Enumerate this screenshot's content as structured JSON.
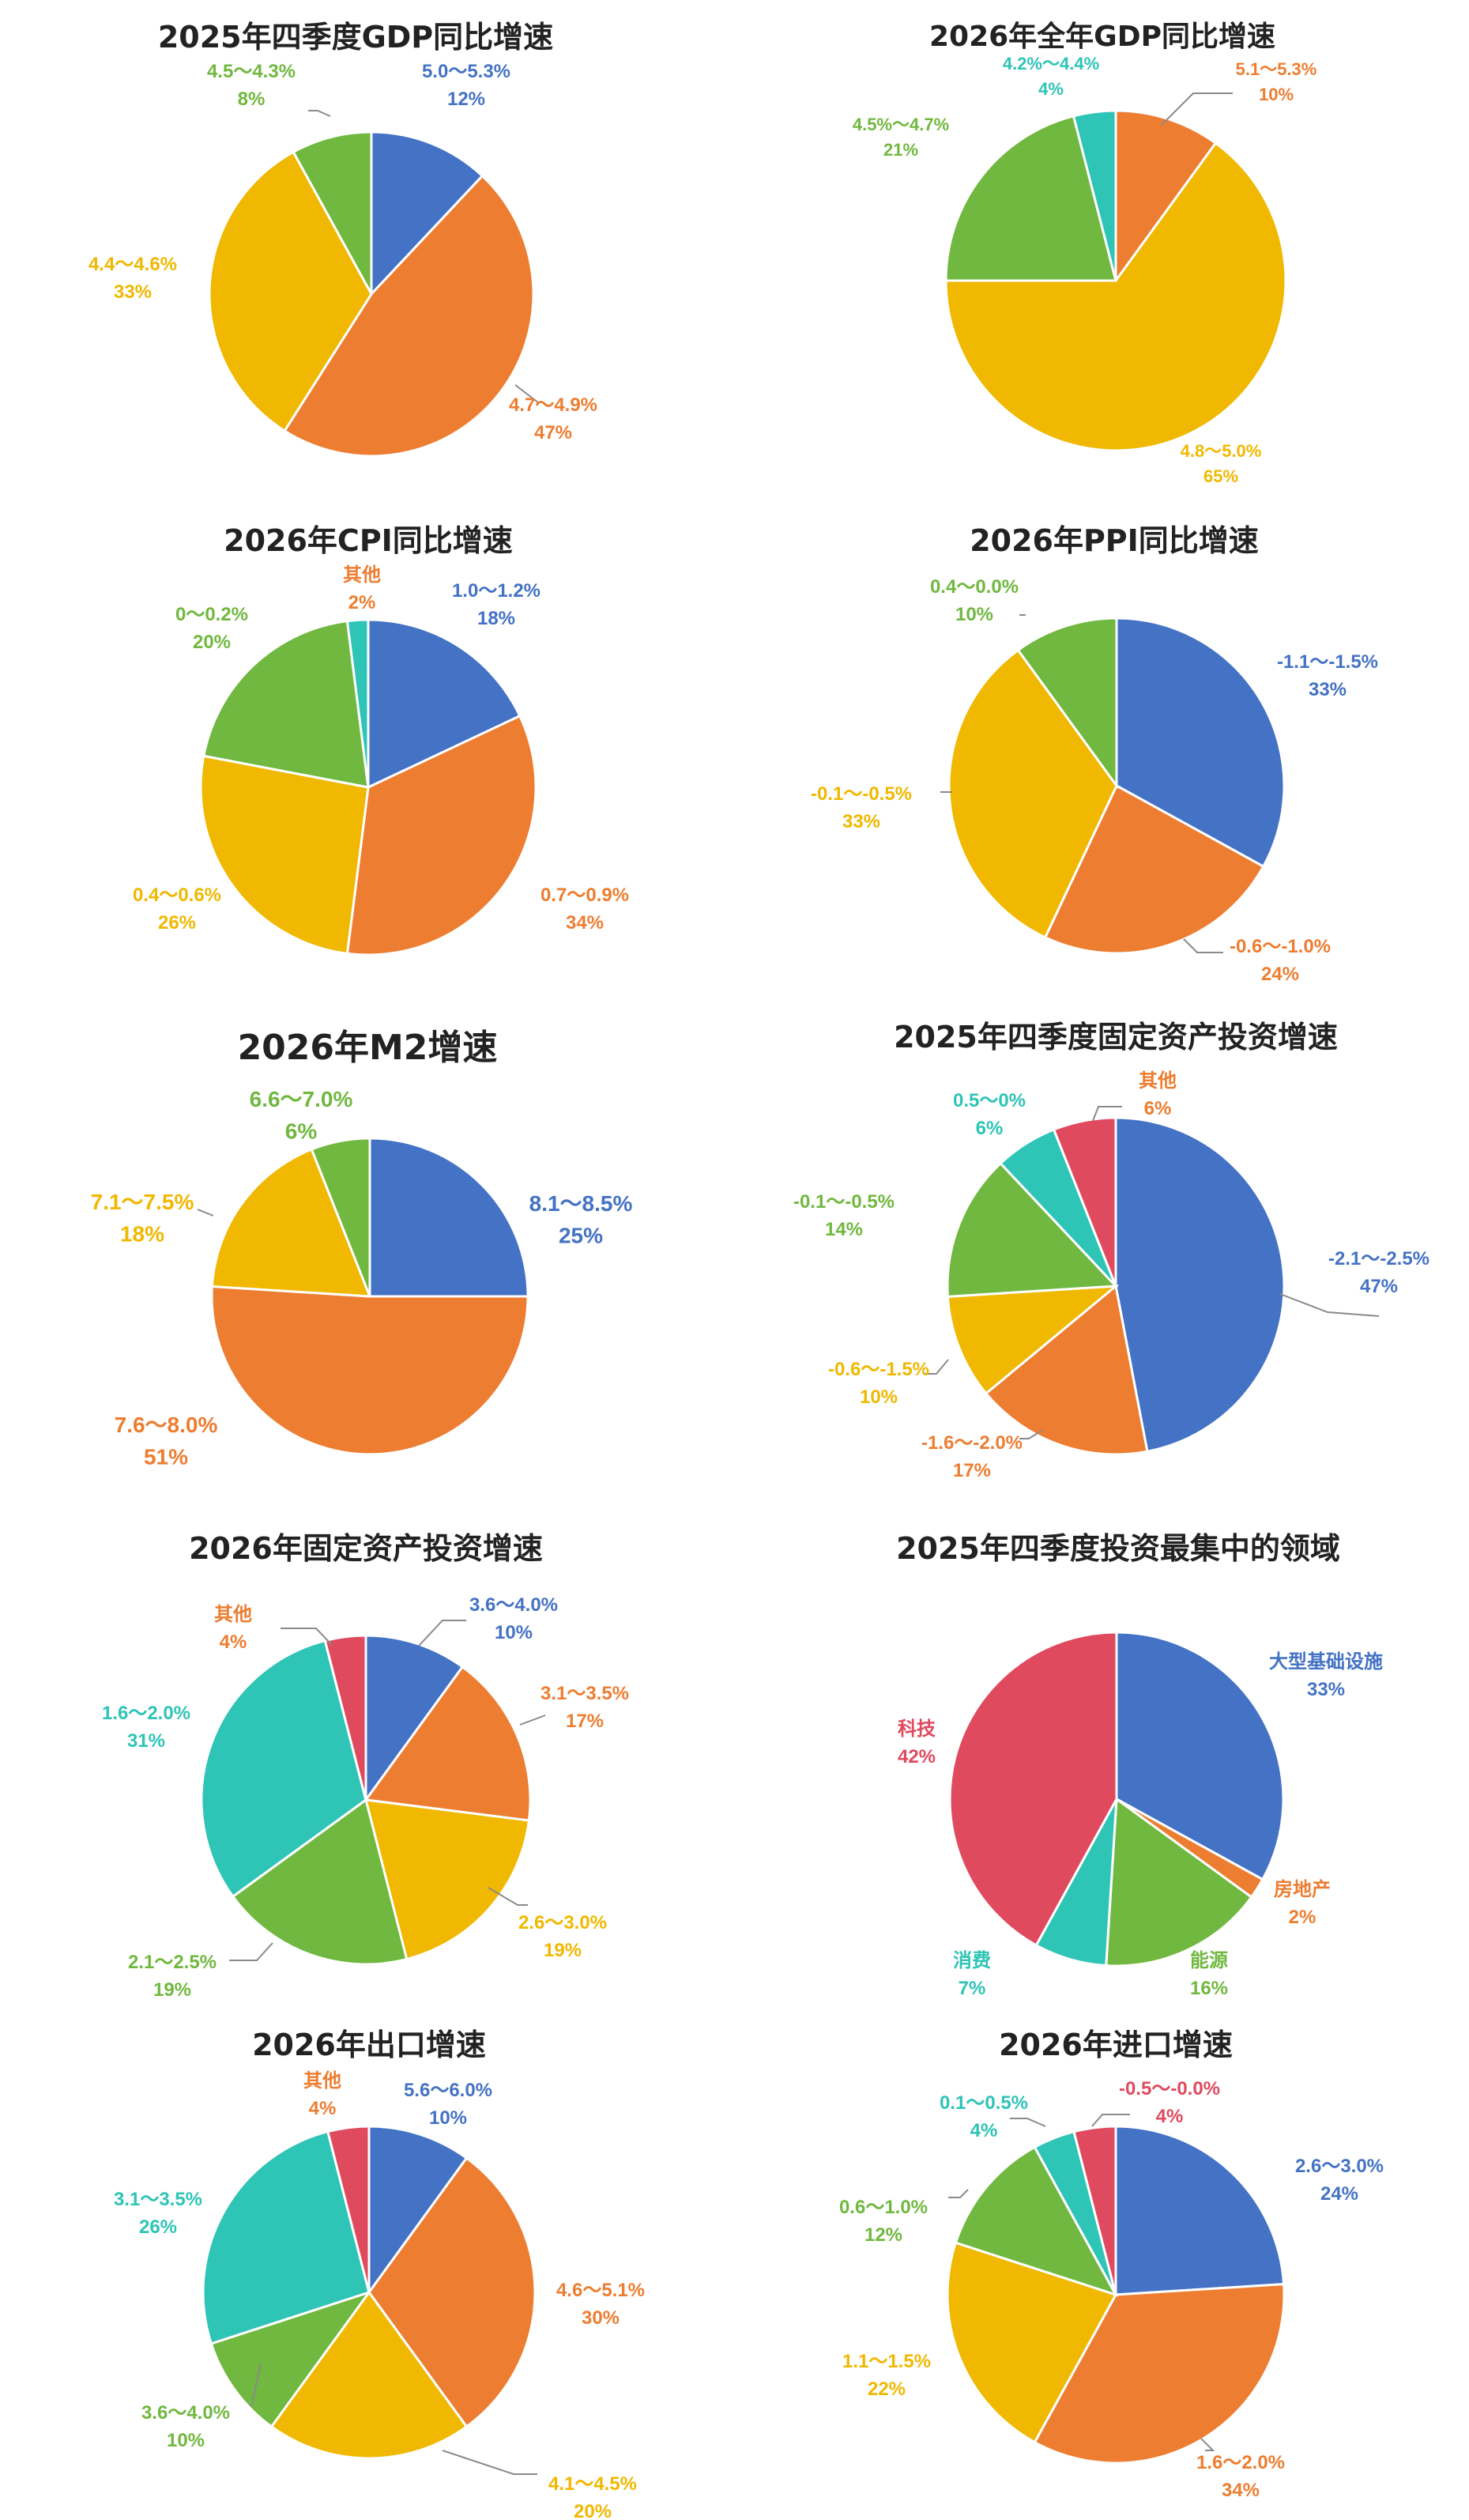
{
  "palette": {
    "blue": "#4472C4",
    "orange": "#ED7D31",
    "yellow": "#F0B800",
    "green": "#70B83F",
    "teal": "#2EC4B6",
    "red": "#E04A5F"
  },
  "chart_data": [
    {
      "type": "pie",
      "title": "2025年四季度GDP同比增速",
      "slices": [
        {
          "label": "5.0～5.3%",
          "value": 12,
          "value_label": "12%",
          "color": "blue"
        },
        {
          "label": "4.7～4.9%",
          "value": 47,
          "value_label": "47%",
          "color": "orange"
        },
        {
          "label": "4.4～4.6%",
          "value": 33,
          "value_label": "33%",
          "color": "yellow"
        },
        {
          "label": "4.5～4.3%",
          "value": 8,
          "value_label": "8%",
          "color": "green"
        }
      ]
    },
    {
      "type": "pie",
      "title": "2026年全年GDP同比增速",
      "slices": [
        {
          "label": "5.1～5.3%",
          "value": 10,
          "value_label": "10%",
          "color": "orange"
        },
        {
          "label": "4.8～5.0%",
          "value": 65,
          "value_label": "65%",
          "color": "yellow"
        },
        {
          "label": "4.5%～4.7%",
          "value": 21,
          "value_label": "21%",
          "color": "green"
        },
        {
          "label": "4.2%～4.4%",
          "value": 4,
          "value_label": "4%",
          "color": "teal"
        }
      ]
    },
    {
      "type": "pie",
      "title": "2026年CPI同比增速",
      "slices": [
        {
          "label": "1.0～1.2%",
          "value": 18,
          "value_label": "18%",
          "color": "blue"
        },
        {
          "label": "0.7～0.9%",
          "value": 34,
          "value_label": "34%",
          "color": "orange"
        },
        {
          "label": "0.4～0.6%",
          "value": 26,
          "value_label": "26%",
          "color": "yellow"
        },
        {
          "label": "0～0.2%",
          "value": 20,
          "value_label": "20%",
          "color": "green"
        },
        {
          "label": "其他",
          "value": 2,
          "value_label": "2%",
          "color": "teal",
          "label_color": "orange"
        }
      ]
    },
    {
      "type": "pie",
      "title": "2026年PPI同比增速",
      "slices": [
        {
          "label": "-1.1～-1.5%",
          "value": 33,
          "value_label": "33%",
          "color": "blue"
        },
        {
          "label": "-0.6～-1.0%",
          "value": 24,
          "value_label": "24%",
          "color": "orange"
        },
        {
          "label": "-0.1～-0.5%",
          "value": 33,
          "value_label": "33%",
          "color": "yellow"
        },
        {
          "label": "0.4～0.0%",
          "value": 10,
          "value_label": "10%",
          "color": "green"
        }
      ]
    },
    {
      "type": "pie",
      "title": "2026年M2增速",
      "slices": [
        {
          "label": "8.1～8.5%",
          "value": 25,
          "value_label": "25%",
          "color": "blue"
        },
        {
          "label": "7.6～8.0%",
          "value": 51,
          "value_label": "51%",
          "color": "orange"
        },
        {
          "label": "7.1～7.5%",
          "value": 18,
          "value_label": "18%",
          "color": "yellow"
        },
        {
          "label": "6.6～7.0%",
          "value": 6,
          "value_label": "6%",
          "color": "green"
        }
      ]
    },
    {
      "type": "pie",
      "title": "2025年四季度固定资产投资增速",
      "slices": [
        {
          "label": "-2.1～-2.5%",
          "value": 47,
          "value_label": "47%",
          "color": "blue"
        },
        {
          "label": "-1.6～-2.0%",
          "value": 17,
          "value_label": "17%",
          "color": "orange"
        },
        {
          "label": "-0.6～-1.5%",
          "value": 10,
          "value_label": "10%",
          "color": "yellow"
        },
        {
          "label": "-0.1～-0.5%",
          "value": 14,
          "value_label": "14%",
          "color": "green"
        },
        {
          "label": "0.5～0%",
          "value": 6,
          "value_label": "6%",
          "color": "teal"
        },
        {
          "label": "其他",
          "value": 6,
          "value_label": "6%",
          "color": "red",
          "label_color": "orange"
        }
      ]
    },
    {
      "type": "pie",
      "title": "2026年固定资产投资增速",
      "slices": [
        {
          "label": "3.6～4.0%",
          "value": 10,
          "value_label": "10%",
          "color": "blue"
        },
        {
          "label": "3.1～3.5%",
          "value": 17,
          "value_label": "17%",
          "color": "orange"
        },
        {
          "label": "2.6～3.0%",
          "value": 19,
          "value_label": "19%",
          "color": "yellow"
        },
        {
          "label": "2.1～2.5%",
          "value": 19,
          "value_label": "19%",
          "color": "green"
        },
        {
          "label": "1.6～2.0%",
          "value": 31,
          "value_label": "31%",
          "color": "teal"
        },
        {
          "label": "其他",
          "value": 4,
          "value_label": "4%",
          "color": "red",
          "label_color": "orange"
        }
      ]
    },
    {
      "type": "pie",
      "title": "2025年四季度投资最集中的领域",
      "slices": [
        {
          "label": "大型基础设施",
          "value": 33,
          "value_label": "33%",
          "color": "blue"
        },
        {
          "label": "房地产",
          "value": 2,
          "value_label": "2%",
          "color": "orange"
        },
        {
          "label": "能源",
          "value": 16,
          "value_label": "16%",
          "color": "green"
        },
        {
          "label": "消费",
          "value": 7,
          "value_label": "7%",
          "color": "teal"
        },
        {
          "label": "科技",
          "value": 42,
          "value_label": "42%",
          "color": "red"
        }
      ]
    },
    {
      "type": "pie",
      "title": "2026年出口增速",
      "slices": [
        {
          "label": "5.6～6.0%",
          "value": 10,
          "value_label": "10%",
          "color": "blue"
        },
        {
          "label": "4.6～5.1%",
          "value": 30,
          "value_label": "30%",
          "color": "orange"
        },
        {
          "label": "4.1～4.5%",
          "value": 20,
          "value_label": "20%",
          "color": "yellow"
        },
        {
          "label": "3.6～4.0%",
          "value": 10,
          "value_label": "10%",
          "color": "green"
        },
        {
          "label": "3.1～3.5%",
          "value": 26,
          "value_label": "26%",
          "color": "teal"
        },
        {
          "label": "其他",
          "value": 4,
          "value_label": "4%",
          "color": "red",
          "label_color": "orange"
        }
      ]
    },
    {
      "type": "pie",
      "title": "2026年进口增速",
      "slices": [
        {
          "label": "2.6～3.0%",
          "value": 24,
          "value_label": "24%",
          "color": "blue"
        },
        {
          "label": "1.6～2.0%",
          "value": 34,
          "value_label": "34%",
          "color": "orange"
        },
        {
          "label": "1.1～1.5%",
          "value": 22,
          "value_label": "22%",
          "color": "yellow"
        },
        {
          "label": "0.6～1.0%",
          "value": 12,
          "value_label": "12%",
          "color": "green"
        },
        {
          "label": "0.1～0.5%",
          "value": 4,
          "value_label": "4%",
          "color": "teal"
        },
        {
          "label": "-0.5～-0.0%",
          "value": 4,
          "value_label": "4%",
          "color": "red"
        }
      ]
    }
  ]
}
